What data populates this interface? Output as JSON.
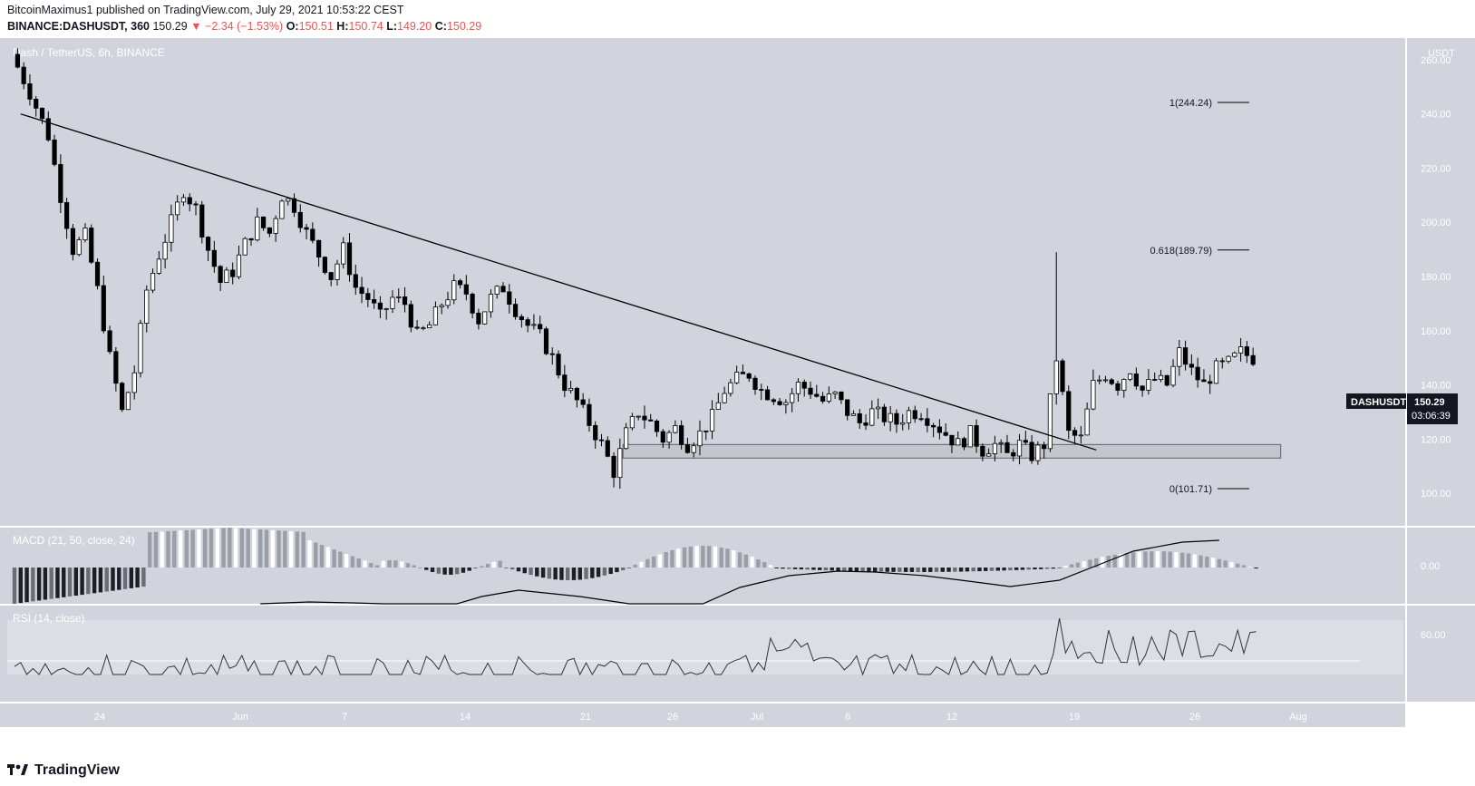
{
  "header": {
    "publisher_line": "BitcoinMaximus1 published on TradingView.com, July 29, 2021 10:53:22 CEST",
    "symbol": "BINANCE:DASHUSDT, 360",
    "last": "150.29",
    "change": "▼ −2.34 (−1.53%)",
    "o_label": "O:",
    "o": "150.51",
    "h_label": "H:",
    "h": "150.74",
    "l_label": "L:",
    "l": "149.20",
    "c_label": "C:",
    "c": "150.29"
  },
  "chart_data": {
    "type": "candlestick",
    "pane_title": "Dash / TetherUS, 6h, BINANCE",
    "currency": "USDT",
    "ylim": [
      88,
      268
    ],
    "y_ticks": [
      100,
      120,
      140,
      160,
      180,
      200,
      220,
      240,
      260
    ],
    "y_tick_labels": [
      "100.00",
      "120.00",
      "140.00",
      "160.00",
      "180.00",
      "200.00",
      "220.00",
      "240.00",
      "260.00"
    ],
    "x_tick_labels": [
      "24",
      "Jun",
      "7",
      "14",
      "21",
      "26",
      "Jul",
      "6",
      "12",
      "19",
      "26",
      "Aug"
    ],
    "price_path": [
      [
        0,
        262
      ],
      [
        3,
        248
      ],
      [
        6,
        232
      ],
      [
        8,
        210
      ],
      [
        10,
        190
      ],
      [
        12,
        195
      ],
      [
        14,
        175
      ],
      [
        16,
        150
      ],
      [
        18,
        130
      ],
      [
        20,
        145
      ],
      [
        22,
        175
      ],
      [
        24,
        188
      ],
      [
        26,
        200
      ],
      [
        28,
        212
      ],
      [
        30,
        205
      ],
      [
        32,
        190
      ],
      [
        34,
        178
      ],
      [
        36,
        182
      ],
      [
        38,
        192
      ],
      [
        40,
        200
      ],
      [
        42,
        196
      ],
      [
        44,
        210
      ],
      [
        46,
        206
      ],
      [
        48,
        196
      ],
      [
        50,
        188
      ],
      [
        52,
        180
      ],
      [
        54,
        190
      ],
      [
        56,
        176
      ],
      [
        58,
        172
      ],
      [
        60,
        165
      ],
      [
        62,
        172
      ],
      [
        64,
        170
      ],
      [
        66,
        158
      ],
      [
        68,
        162
      ],
      [
        70,
        170
      ],
      [
        72,
        176
      ],
      [
        74,
        174
      ],
      [
        76,
        164
      ],
      [
        78,
        172
      ],
      [
        80,
        176
      ],
      [
        82,
        168
      ],
      [
        84,
        162
      ],
      [
        86,
        158
      ],
      [
        88,
        150
      ],
      [
        90,
        140
      ],
      [
        92,
        134
      ],
      [
        94,
        126
      ],
      [
        96,
        118
      ],
      [
        98,
        108
      ],
      [
        100,
        122
      ],
      [
        102,
        130
      ],
      [
        104,
        126
      ],
      [
        106,
        120
      ],
      [
        108,
        124
      ],
      [
        110,
        118
      ],
      [
        112,
        122
      ],
      [
        114,
        128
      ],
      [
        116,
        138
      ],
      [
        118,
        142
      ],
      [
        120,
        144
      ],
      [
        122,
        138
      ],
      [
        124,
        136
      ],
      [
        126,
        134
      ],
      [
        128,
        140
      ],
      [
        130,
        138
      ],
      [
        132,
        134
      ],
      [
        134,
        136
      ],
      [
        136,
        130
      ],
      [
        138,
        126
      ],
      [
        140,
        130
      ],
      [
        142,
        128
      ],
      [
        144,
        126
      ],
      [
        146,
        130
      ],
      [
        148,
        130
      ],
      [
        150,
        126
      ],
      [
        152,
        122
      ],
      [
        154,
        118
      ],
      [
        156,
        122
      ],
      [
        158,
        116
      ],
      [
        160,
        118
      ],
      [
        162,
        114
      ],
      [
        164,
        118
      ],
      [
        166,
        114
      ],
      [
        168,
        118
      ],
      [
        170,
        150
      ],
      [
        172,
        122
      ],
      [
        174,
        120
      ],
      [
        176,
        140
      ],
      [
        178,
        144
      ],
      [
        180,
        140
      ],
      [
        182,
        146
      ],
      [
        184,
        138
      ],
      [
        186,
        142
      ],
      [
        188,
        140
      ],
      [
        190,
        152
      ],
      [
        192,
        145
      ],
      [
        194,
        140
      ],
      [
        196,
        146
      ],
      [
        198,
        148
      ],
      [
        200,
        152
      ],
      [
        202,
        150
      ]
    ],
    "trendline": {
      "from": {
        "x": 1,
        "y": 240
      },
      "to": {
        "x": 176,
        "y": 116
      }
    },
    "support_zone": {
      "y_low": 113,
      "y_high": 118,
      "x_from": 99,
      "x_to": 206
    },
    "fibonacci": [
      {
        "label": "1(244.24)",
        "value": 244.24
      },
      {
        "label": "0.618(189.79)",
        "value": 189.79
      },
      {
        "label": "0(101.71)",
        "value": 101.71
      }
    ],
    "last_price_label": "DASHUSDT",
    "last_price_value": "150.29",
    "countdown": "03:06:39",
    "macd": {
      "title": "MACD (21, 50, close, 24)",
      "tick_label": "0.00"
    },
    "rsi": {
      "title": "RSI (14, close)",
      "tick_label": "60.00",
      "level": 50
    }
  },
  "footer": {
    "brand": "TradingView"
  },
  "colors": {
    "pane_bg": "#d1d4dc",
    "axis_bg": "#d1d4dc",
    "candle": "#000000"
  }
}
